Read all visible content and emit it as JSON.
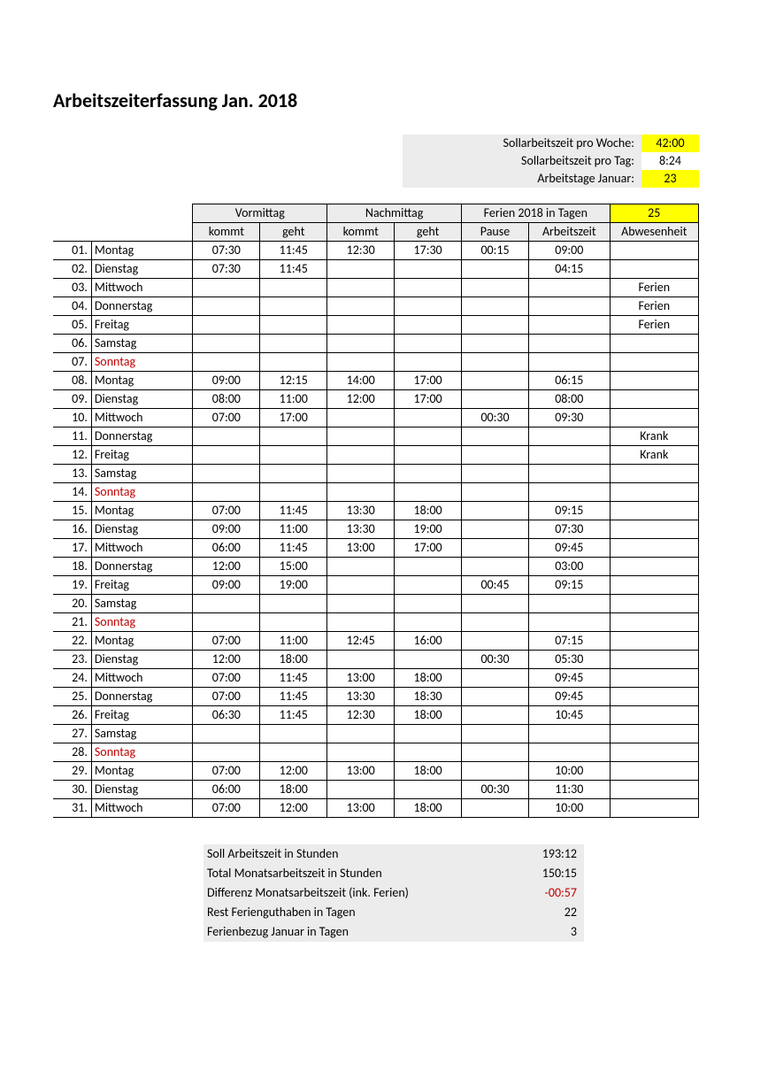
{
  "title": "Arbeitszeiterfassung    Jan.  2018",
  "header": {
    "rows": [
      {
        "label": "Sollarbeitszeit pro Woche:",
        "value": "42:00",
        "highlight": true
      },
      {
        "label": "Sollarbeitszeit pro Tag:",
        "value": "8:24",
        "highlight": false
      },
      {
        "label": "Arbeitstage Januar:",
        "value": "23",
        "highlight": true
      }
    ]
  },
  "table": {
    "group_headers": {
      "vormittag": "Vormittag",
      "nachmittag": "Nachmittag",
      "ferien": "Ferien 2018 in Tagen",
      "ferien_value": "25"
    },
    "columns": {
      "kommt1": "kommt",
      "geht1": "geht",
      "kommt2": "kommt",
      "geht2": "geht",
      "pause": "Pause",
      "arbeitszeit": "Arbeitszeit",
      "abwesenheit": "Abwesenheit"
    },
    "rows": [
      {
        "num": "01.",
        "day": "Montag",
        "k1": "07:30",
        "g1": "11:45",
        "k2": "12:30",
        "g2": "17:30",
        "p": "00:15",
        "az": "09:00",
        "abw": ""
      },
      {
        "num": "02.",
        "day": "Dienstag",
        "k1": "07:30",
        "g1": "11:45",
        "k2": "",
        "g2": "",
        "p": "",
        "az": "04:15",
        "abw": ""
      },
      {
        "num": "03.",
        "day": "Mittwoch",
        "k1": "",
        "g1": "",
        "k2": "",
        "g2": "",
        "p": "",
        "az": "",
        "abw": "Ferien"
      },
      {
        "num": "04.",
        "day": "Donnerstag",
        "k1": "",
        "g1": "",
        "k2": "",
        "g2": "",
        "p": "",
        "az": "",
        "abw": "Ferien"
      },
      {
        "num": "05.",
        "day": "Freitag",
        "k1": "",
        "g1": "",
        "k2": "",
        "g2": "",
        "p": "",
        "az": "",
        "abw": "Ferien"
      },
      {
        "num": "06.",
        "day": "Samstag",
        "k1": "",
        "g1": "",
        "k2": "",
        "g2": "",
        "p": "",
        "az": "",
        "abw": ""
      },
      {
        "num": "07.",
        "day": "Sonntag",
        "k1": "",
        "g1": "",
        "k2": "",
        "g2": "",
        "p": "",
        "az": "",
        "abw": "",
        "sunday": true
      },
      {
        "num": "08.",
        "day": "Montag",
        "k1": "09:00",
        "g1": "12:15",
        "k2": "14:00",
        "g2": "17:00",
        "p": "",
        "az": "06:15",
        "abw": ""
      },
      {
        "num": "09.",
        "day": "Dienstag",
        "k1": "08:00",
        "g1": "11:00",
        "k2": "12:00",
        "g2": "17:00",
        "p": "",
        "az": "08:00",
        "abw": ""
      },
      {
        "num": "10.",
        "day": "Mittwoch",
        "k1": "07:00",
        "g1": "17:00",
        "k2": "",
        "g2": "",
        "p": "00:30",
        "az": "09:30",
        "abw": ""
      },
      {
        "num": "11.",
        "day": "Donnerstag",
        "k1": "",
        "g1": "",
        "k2": "",
        "g2": "",
        "p": "",
        "az": "",
        "abw": "Krank"
      },
      {
        "num": "12.",
        "day": "Freitag",
        "k1": "",
        "g1": "",
        "k2": "",
        "g2": "",
        "p": "",
        "az": "",
        "abw": "Krank"
      },
      {
        "num": "13.",
        "day": "Samstag",
        "k1": "",
        "g1": "",
        "k2": "",
        "g2": "",
        "p": "",
        "az": "",
        "abw": ""
      },
      {
        "num": "14.",
        "day": "Sonntag",
        "k1": "",
        "g1": "",
        "k2": "",
        "g2": "",
        "p": "",
        "az": "",
        "abw": "",
        "sunday": true
      },
      {
        "num": "15.",
        "day": "Montag",
        "k1": "07:00",
        "g1": "11:45",
        "k2": "13:30",
        "g2": "18:00",
        "p": "",
        "az": "09:15",
        "abw": ""
      },
      {
        "num": "16.",
        "day": "Dienstag",
        "k1": "09:00",
        "g1": "11:00",
        "k2": "13:30",
        "g2": "19:00",
        "p": "",
        "az": "07:30",
        "abw": ""
      },
      {
        "num": "17.",
        "day": "Mittwoch",
        "k1": "06:00",
        "g1": "11:45",
        "k2": "13:00",
        "g2": "17:00",
        "p": "",
        "az": "09:45",
        "abw": ""
      },
      {
        "num": "18.",
        "day": "Donnerstag",
        "k1": "12:00",
        "g1": "15:00",
        "k2": "",
        "g2": "",
        "p": "",
        "az": "03:00",
        "abw": ""
      },
      {
        "num": "19.",
        "day": "Freitag",
        "k1": "09:00",
        "g1": "19:00",
        "k2": "",
        "g2": "",
        "p": "00:45",
        "az": "09:15",
        "abw": ""
      },
      {
        "num": "20.",
        "day": "Samstag",
        "k1": "",
        "g1": "",
        "k2": "",
        "g2": "",
        "p": "",
        "az": "",
        "abw": ""
      },
      {
        "num": "21.",
        "day": "Sonntag",
        "k1": "",
        "g1": "",
        "k2": "",
        "g2": "",
        "p": "",
        "az": "",
        "abw": "",
        "sunday": true
      },
      {
        "num": "22.",
        "day": "Montag",
        "k1": "07:00",
        "g1": "11:00",
        "k2": "12:45",
        "g2": "16:00",
        "p": "",
        "az": "07:15",
        "abw": ""
      },
      {
        "num": "23.",
        "day": "Dienstag",
        "k1": "12:00",
        "g1": "18:00",
        "k2": "",
        "g2": "",
        "p": "00:30",
        "az": "05:30",
        "abw": ""
      },
      {
        "num": "24.",
        "day": "Mittwoch",
        "k1": "07:00",
        "g1": "11:45",
        "k2": "13:00",
        "g2": "18:00",
        "p": "",
        "az": "09:45",
        "abw": ""
      },
      {
        "num": "25.",
        "day": "Donnerstag",
        "k1": "07:00",
        "g1": "11:45",
        "k2": "13:30",
        "g2": "18:30",
        "p": "",
        "az": "09:45",
        "abw": ""
      },
      {
        "num": "26.",
        "day": "Freitag",
        "k1": "06:30",
        "g1": "11:45",
        "k2": "12:30",
        "g2": "18:00",
        "p": "",
        "az": "10:45",
        "abw": ""
      },
      {
        "num": "27.",
        "day": "Samstag",
        "k1": "",
        "g1": "",
        "k2": "",
        "g2": "",
        "p": "",
        "az": "",
        "abw": ""
      },
      {
        "num": "28.",
        "day": "Sonntag",
        "k1": "",
        "g1": "",
        "k2": "",
        "g2": "",
        "p": "",
        "az": "",
        "abw": "",
        "sunday": true
      },
      {
        "num": "29.",
        "day": "Montag",
        "k1": "07:00",
        "g1": "12:00",
        "k2": "13:00",
        "g2": "18:00",
        "p": "",
        "az": "10:00",
        "abw": ""
      },
      {
        "num": "30.",
        "day": "Dienstag",
        "k1": "06:00",
        "g1": "18:00",
        "k2": "",
        "g2": "",
        "p": "00:30",
        "az": "11:30",
        "abw": ""
      },
      {
        "num": "31.",
        "day": "Mittwoch",
        "k1": "07:00",
        "g1": "12:00",
        "k2": "13:00",
        "g2": "18:00",
        "p": "",
        "az": "10:00",
        "abw": ""
      }
    ]
  },
  "summary": [
    {
      "label": "Soll Arbeitszeit in Stunden",
      "value": "193:12"
    },
    {
      "label": "Total Monatsarbeitszeit in Stunden",
      "value": "150:15"
    },
    {
      "label": "Differenz Monatsarbeitszeit (ink. Ferien)",
      "value": "-00:57",
      "negative": true
    },
    {
      "label": "Rest Ferienguthaben in Tagen",
      "value": "22"
    },
    {
      "label": "Ferienbezug Januar in Tagen",
      "value": "3"
    }
  ]
}
